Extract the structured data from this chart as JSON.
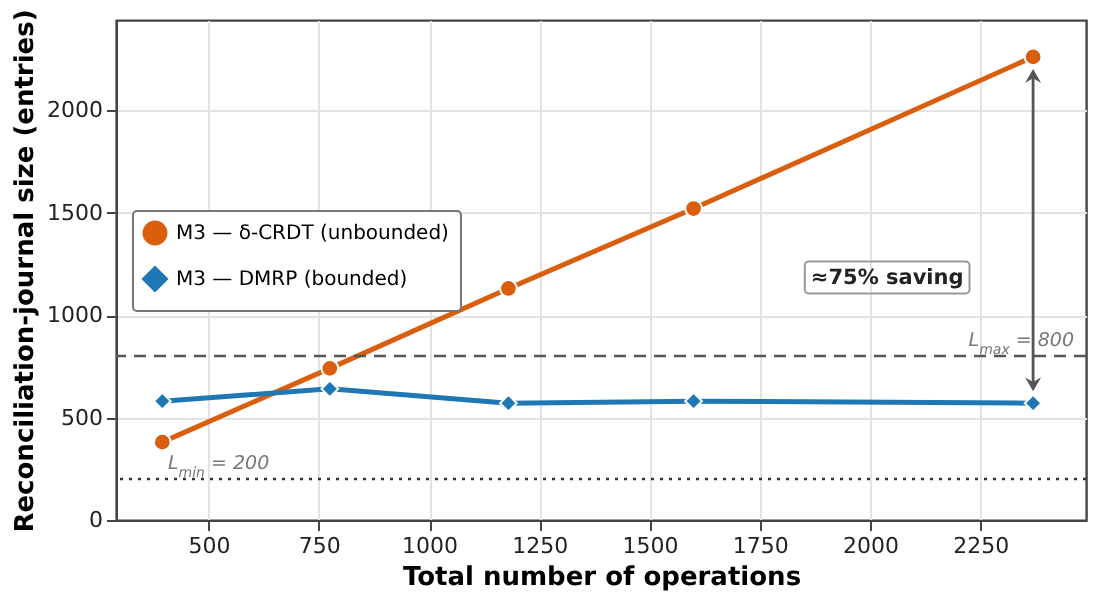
{
  "chart_data": {
    "type": "line",
    "xlabel": "Total number of operations",
    "ylabel": "Reconciliation-journal size (entries)",
    "x": [
      395,
      775,
      1180,
      1600,
      2370
    ],
    "series": [
      {
        "name": "M3 — δ-CRDT (unbounded)",
        "color": "#d95f0e",
        "marker": "circle",
        "values": [
          380,
          740,
          1130,
          1520,
          2260
        ]
      },
      {
        "name": "M3 — DMRP (bounded)",
        "color": "#1f77b4",
        "marker": "diamond",
        "values": [
          580,
          640,
          570,
          580,
          570
        ]
      }
    ],
    "xlim": [
      290,
      2490
    ],
    "xticks": [
      500,
      750,
      1000,
      1250,
      1500,
      1750,
      2000,
      2250
    ],
    "ylim": [
      0,
      2440
    ],
    "yticks": [
      0,
      500,
      1000,
      1500,
      2000
    ],
    "ref_lines": [
      {
        "axis": "y",
        "value": 800,
        "label": "L$_{max}$ = 800",
        "line_style": "dashed",
        "color": "#555555"
      },
      {
        "axis": "y",
        "value": 200,
        "label": "L$_{min}$ = 200",
        "line_style": "dotted",
        "color": "#333333"
      }
    ],
    "annotations": [
      "≈75% saving"
    ],
    "grid": true,
    "legend": "left",
    "line_style": "solid"
  }
}
